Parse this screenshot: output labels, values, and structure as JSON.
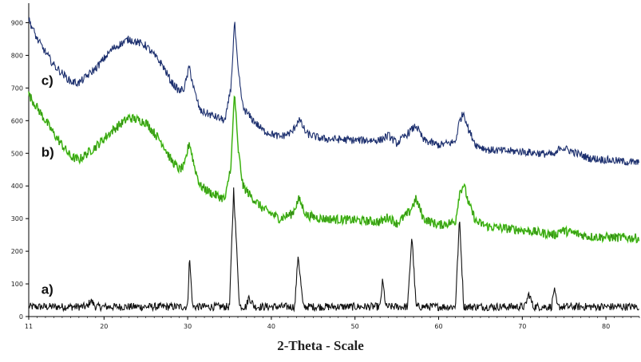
{
  "chart_data": {
    "type": "line",
    "title": "",
    "xlabel": "2-Theta - Scale",
    "ylabel": "",
    "xlim": [
      11,
      84
    ],
    "ylim": [
      0,
      950
    ],
    "x_ticks": [
      11,
      20,
      30,
      40,
      50,
      60,
      70,
      80
    ],
    "y_ticks": [
      0,
      100,
      200,
      300,
      400,
      500,
      600,
      700,
      800,
      900
    ],
    "grid": false,
    "legend": "none",
    "series": [
      {
        "label": "a)",
        "color": "#111111",
        "label_pos": [
          12.5,
          70
        ],
        "noise": 12,
        "x": [
          11,
          18,
          18.4,
          19,
          30,
          30.2,
          30.6,
          35,
          35.5,
          36.2,
          37,
          37.3,
          38,
          42.8,
          43.2,
          43.8,
          53,
          53.3,
          53.7,
          56.3,
          56.8,
          57.3,
          62,
          62.5,
          63,
          70.3,
          70.8,
          71.3,
          73.5,
          73.8,
          74.2,
          84
        ],
        "y": [
          30,
          30,
          50,
          30,
          30,
          185,
          30,
          30,
          390,
          32,
          30,
          60,
          30,
          30,
          190,
          30,
          30,
          110,
          30,
          30,
          250,
          30,
          30,
          300,
          30,
          30,
          70,
          30,
          30,
          85,
          30,
          30
        ]
      },
      {
        "label": "b)",
        "color": "#55dd22",
        "label_pos": [
          12.5,
          490
        ],
        "noise": 14,
        "x": [
          11,
          12,
          14,
          16,
          17,
          19,
          21,
          23,
          25,
          27,
          28,
          29,
          29.6,
          30.2,
          30.8,
          31.5,
          33,
          34.5,
          35.2,
          35.6,
          36.0,
          36.6,
          37.5,
          39,
          41,
          42.5,
          43.3,
          44.2,
          46,
          50,
          53,
          54,
          55,
          56.5,
          57.3,
          58.2,
          60,
          62,
          62.5,
          63.0,
          63.6,
          64.5,
          66,
          70,
          74,
          74.5,
          78,
          84
        ],
        "y": [
          680,
          640,
          560,
          490,
          480,
          520,
          570,
          610,
          595,
          530,
          480,
          450,
          460,
          535,
          460,
          400,
          375,
          360,
          470,
          690,
          520,
          400,
          370,
          330,
          300,
          315,
          360,
          310,
          300,
          295,
          290,
          305,
          285,
          320,
          360,
          300,
          280,
          290,
          380,
          405,
          345,
          290,
          275,
          265,
          250,
          265,
          245,
          240
        ]
      },
      {
        "label": "c)",
        "color": "#1c2f6e",
        "label_pos": [
          12.5,
          710
        ],
        "noise": 12,
        "x": [
          11,
          12,
          14,
          16,
          17,
          19,
          21,
          23,
          25,
          27,
          28,
          29,
          29.6,
          30.2,
          30.8,
          31.5,
          33,
          34.5,
          35.2,
          35.6,
          36.0,
          36.6,
          37.5,
          39,
          41,
          42.5,
          43.3,
          44.2,
          46,
          50,
          53,
          54,
          55,
          56.5,
          57.3,
          58.2,
          60,
          62,
          62.5,
          63.0,
          63.6,
          64.5,
          66,
          70,
          74,
          74.5,
          78,
          84
        ],
        "y": [
          910,
          850,
          770,
          720,
          715,
          760,
          820,
          850,
          830,
          770,
          720,
          690,
          700,
          765,
          690,
          630,
          615,
          600,
          710,
          905,
          760,
          640,
          610,
          570,
          550,
          565,
          605,
          560,
          545,
          540,
          540,
          555,
          530,
          565,
          585,
          540,
          525,
          535,
          600,
          625,
          570,
          525,
          510,
          505,
          495,
          520,
          485,
          470
        ]
      }
    ]
  }
}
